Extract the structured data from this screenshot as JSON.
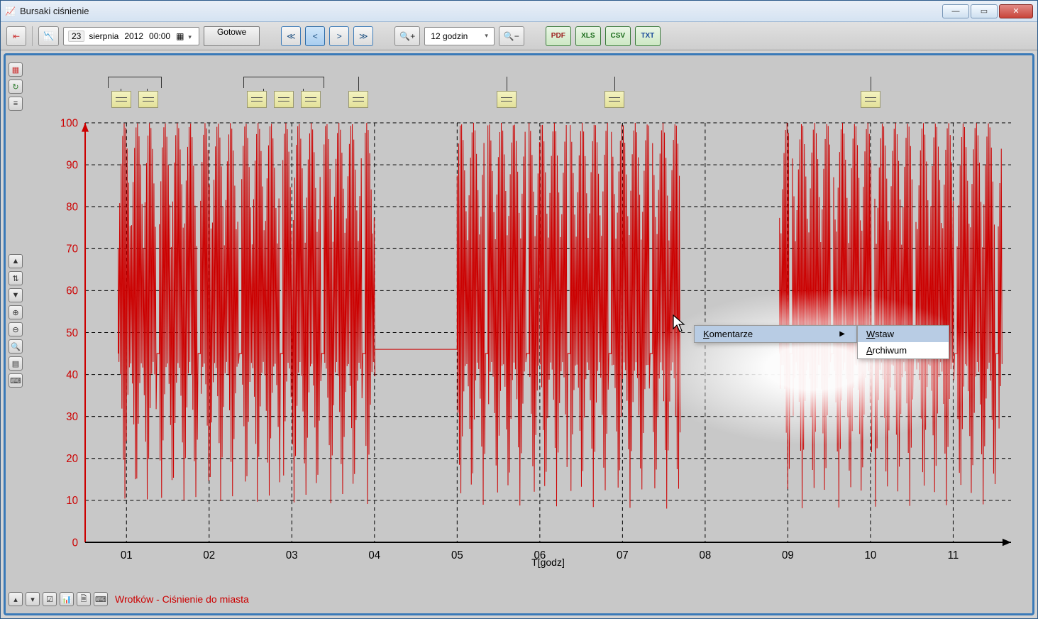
{
  "window": {
    "title": "Bursaki ciśnienie"
  },
  "toolbar": {
    "date_day": "23",
    "date_month": "sierpnia",
    "date_year": "2012",
    "date_time": "00:00",
    "ready": "Gotowe",
    "zoom_label": "12 godzin",
    "exports": [
      "PDF",
      "XLS",
      "CSV",
      "TXT"
    ]
  },
  "chart": {
    "y_ticks": [
      0,
      10,
      20,
      30,
      40,
      50,
      60,
      70,
      80,
      90,
      100
    ],
    "x_ticks": [
      "01",
      "02",
      "03",
      "04",
      "05",
      "06",
      "07",
      "08",
      "09",
      "10",
      "11"
    ],
    "x_label": "T[godz]",
    "series_color": "#cc0000",
    "grid_color": "#000",
    "flat_segment": {
      "x_from": 4.0,
      "x_to": 5.0,
      "y": 46
    },
    "gap": {
      "x_from": 7.7,
      "x_to": 8.9
    },
    "note_groups": [
      {
        "x": 1.1,
        "count": 2
      },
      {
        "x": 2.9,
        "count": 3
      },
      {
        "x": 3.8,
        "count": 1
      },
      {
        "x": 5.6,
        "count": 1
      },
      {
        "x": 6.9,
        "count": 1
      },
      {
        "x": 10.0,
        "count": 1
      }
    ]
  },
  "context_menu": {
    "main": "Komentarze",
    "sub": [
      "Wstaw",
      "Archiwum"
    ]
  },
  "legend": "Wrotków - Ciśnienie do miasta"
}
